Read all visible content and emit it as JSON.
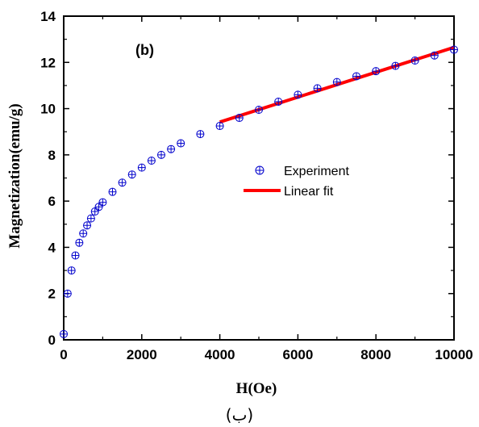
{
  "chart_data": {
    "type": "scatter",
    "panel_label": "(b)",
    "xlabel": "H(Oe)",
    "ylabel": "Magnetization(emu/g)",
    "xlim": [
      0,
      10000
    ],
    "ylim": [
      0,
      14
    ],
    "x_ticks": [
      "0",
      "2000",
      "4000",
      "6000",
      "8000",
      "10000"
    ],
    "y_ticks": [
      "0",
      "2",
      "4",
      "6",
      "8",
      "10",
      "12",
      "14"
    ],
    "legend_placement": "center-right",
    "series": [
      {
        "name": "Experiment",
        "kind": "scatter",
        "color": "#0000cc",
        "marker": "circle-plus",
        "x": [
          0,
          100,
          200,
          300,
          400,
          500,
          600,
          700,
          800,
          900,
          1000,
          1250,
          1500,
          1750,
          2000,
          2250,
          2500,
          2750,
          3000,
          3500,
          4000,
          4500,
          5000,
          5500,
          6000,
          6500,
          7000,
          7500,
          8000,
          8500,
          9000,
          9500,
          10000
        ],
        "y": [
          0.25,
          2.0,
          3.0,
          3.65,
          4.2,
          4.6,
          4.95,
          5.25,
          5.55,
          5.75,
          5.95,
          6.4,
          6.8,
          7.15,
          7.45,
          7.75,
          8.0,
          8.25,
          8.5,
          8.9,
          9.25,
          9.6,
          9.95,
          10.3,
          10.6,
          10.88,
          11.15,
          11.4,
          11.62,
          11.85,
          12.08,
          12.3,
          12.55
        ]
      },
      {
        "name": "Linear fit",
        "kind": "line",
        "color": "#ff0000",
        "x": [
          4000,
          10000
        ],
        "y": [
          9.42,
          12.65
        ]
      }
    ]
  },
  "caption": "(ب)"
}
